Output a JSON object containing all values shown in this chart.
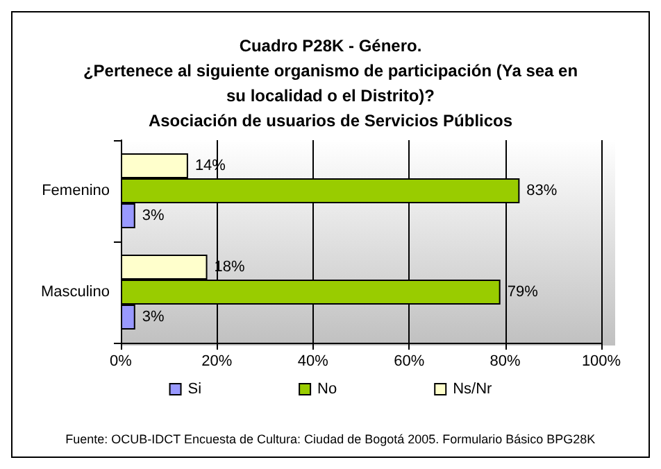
{
  "chart_data": {
    "type": "bar",
    "orientation": "horizontal",
    "title": "Cuadro P28K - Género.\n¿Pertenece al siguiente organismo de participación (Ya sea en\nsu localidad o el Distrito)?\nAsociación de usuarios de Servicios Públicos",
    "categories": [
      "Femenino",
      "Masculino"
    ],
    "series": [
      {
        "name": "Si",
        "color": "#9999ff",
        "values": [
          3,
          3
        ],
        "value_labels": [
          "3%",
          "3%"
        ]
      },
      {
        "name": "No",
        "color": "#99cc00",
        "values": [
          83,
          79
        ],
        "value_labels": [
          "83%",
          "79%"
        ]
      },
      {
        "name": "Ns/Nr",
        "color": "#ffffcc",
        "values": [
          14,
          18
        ],
        "value_labels": [
          "14%",
          "18%"
        ]
      }
    ],
    "xlim": [
      0,
      100
    ],
    "xticks": [
      {
        "value": 0,
        "label": "0%"
      },
      {
        "value": 20,
        "label": "20%"
      },
      {
        "value": 40,
        "label": "40%"
      },
      {
        "value": 60,
        "label": "60%"
      },
      {
        "value": 80,
        "label": "80%"
      },
      {
        "value": 100,
        "label": "100%"
      }
    ],
    "grid": "x",
    "legend": "bottom",
    "annotations": [
      "Fuente: OCUB-IDCT Encuesta de Cultura: Ciudad de Bogotá 2005. Formulario Básico BPG28K"
    ]
  }
}
